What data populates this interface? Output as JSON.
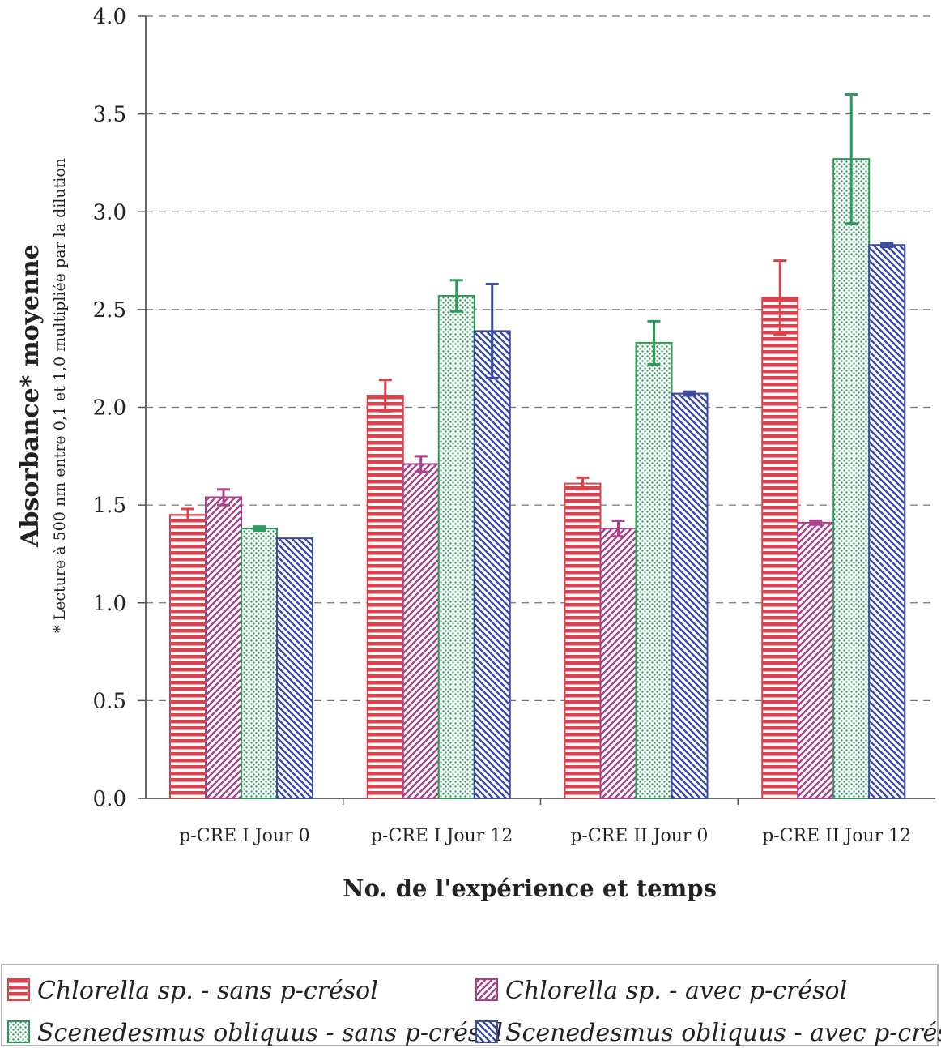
{
  "chart_data": {
    "type": "bar",
    "categories": [
      "p-CRE I Jour 0",
      "p-CRE I Jour 12",
      "p-CRE II Jour 0",
      "p-CRE II Jour 12"
    ],
    "series": [
      {
        "name": "Chlorella sp. - sans p-crésol",
        "values": [
          1.45,
          2.06,
          1.61,
          2.56
        ],
        "errors": [
          0.03,
          0.08,
          0.03,
          0.19
        ],
        "color": "#d9434d",
        "pattern": "horizontal"
      },
      {
        "name": "Chlorella sp. - avec p-crésol",
        "values": [
          1.54,
          1.71,
          1.38,
          1.41
        ],
        "errors": [
          0.04,
          0.04,
          0.04,
          0.01
        ],
        "color": "#a8408a",
        "pattern": "diagonal-up"
      },
      {
        "name": "Scenedesmus obliquus - sans p-crésol",
        "values": [
          1.38,
          2.57,
          2.33,
          3.27
        ],
        "errors": [
          0.01,
          0.08,
          0.11,
          0.33
        ],
        "color": "#2e9a5a",
        "pattern": "dots"
      },
      {
        "name": "Scenedesmus obliquus - avec p-crésol",
        "values": [
          1.33,
          2.39,
          2.07,
          2.83
        ],
        "errors": [
          0.0,
          0.24,
          0.01,
          0.01
        ],
        "color": "#3b4aa0",
        "pattern": "diagonal-down"
      }
    ],
    "xlabel": "No. de l'expérience et temps",
    "ylabel": "Absorbance* moyenne",
    "ylabel_note": "* Lecture à 500 nm entre 0,1 et 1,0 multipliée par la dilution",
    "ylim": [
      0,
      4.0
    ],
    "yticks": [
      "0.0",
      "0.5",
      "1.0",
      "1.5",
      "2.0",
      "2.5",
      "3.0",
      "3.5",
      "4.0"
    ],
    "grid": "horizontal dashed",
    "legend_position": "bottom"
  }
}
